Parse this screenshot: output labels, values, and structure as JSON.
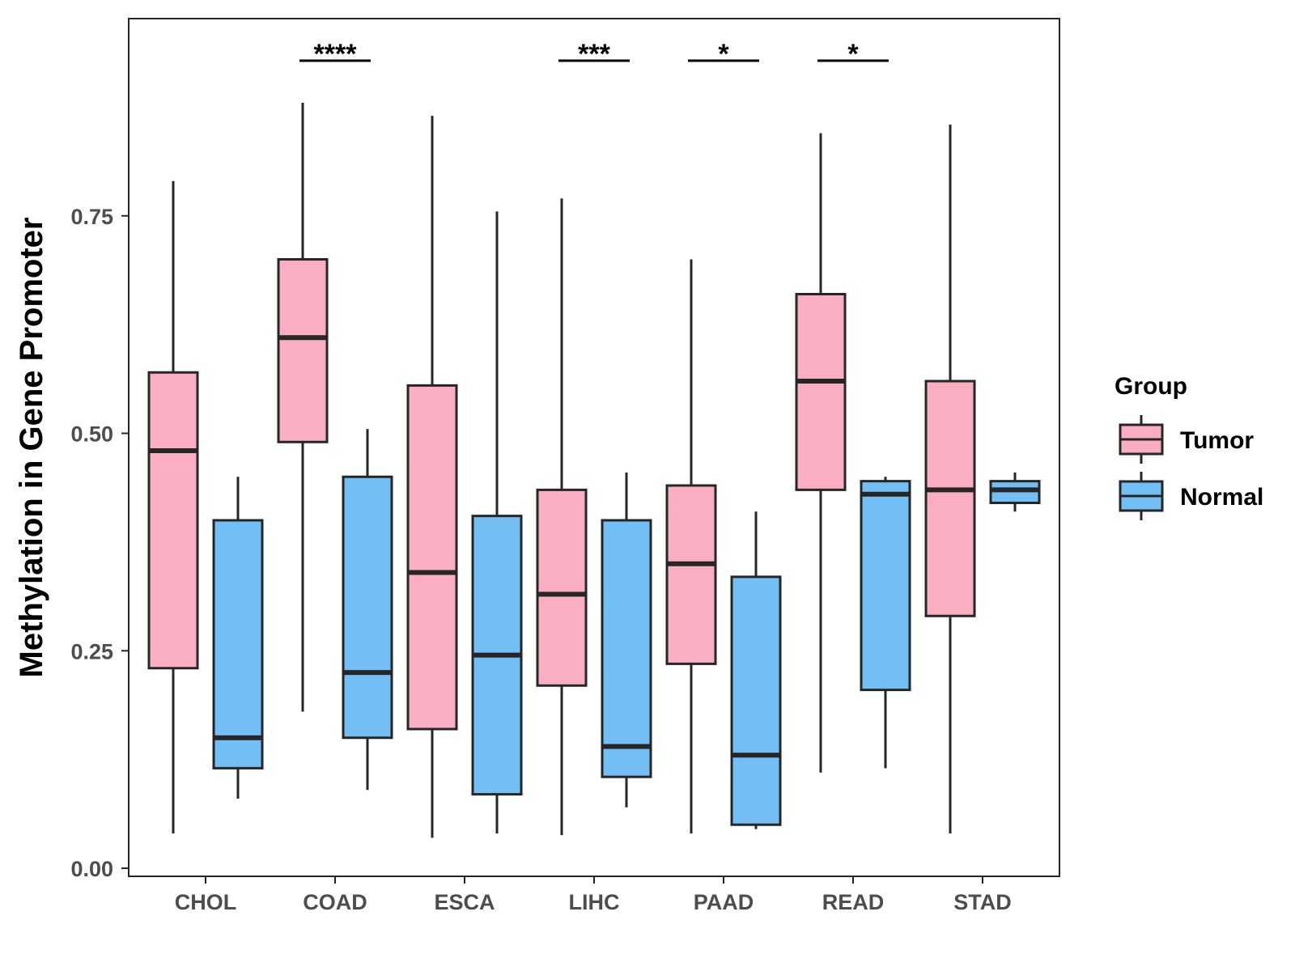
{
  "chart_data": {
    "type": "boxplot",
    "title": "",
    "xlabel": "",
    "ylabel": "Methylation in Gene Promoter",
    "ylim": [
      0,
      0.97
    ],
    "yticks": [
      "0.00",
      "0.25",
      "0.50",
      "0.75"
    ],
    "ytick_values": [
      0,
      0.25,
      0.5,
      0.75
    ],
    "grid": false,
    "legend_position": "right",
    "legend_title": "Group",
    "categories": [
      "CHOL",
      "COAD",
      "ESCA",
      "LIHC",
      "PAAD",
      "READ",
      "STAD"
    ],
    "series": [
      {
        "name": "Tumor",
        "color": "#FBAEC1",
        "boxes": [
          {
            "min": 0.04,
            "q1": 0.23,
            "median": 0.48,
            "q3": 0.57,
            "max": 0.79
          },
          {
            "min": 0.18,
            "q1": 0.49,
            "median": 0.61,
            "q3": 0.7,
            "max": 0.88
          },
          {
            "min": 0.035,
            "q1": 0.16,
            "median": 0.34,
            "q3": 0.555,
            "max": 0.865
          },
          {
            "min": 0.038,
            "q1": 0.21,
            "median": 0.315,
            "q3": 0.435,
            "max": 0.77
          },
          {
            "min": 0.04,
            "q1": 0.235,
            "median": 0.35,
            "q3": 0.44,
            "max": 0.7
          },
          {
            "min": 0.11,
            "q1": 0.435,
            "median": 0.56,
            "q3": 0.66,
            "max": 0.845
          },
          {
            "min": 0.04,
            "q1": 0.29,
            "median": 0.435,
            "q3": 0.56,
            "max": 0.855
          }
        ]
      },
      {
        "name": "Normal",
        "color": "#74BEF6",
        "boxes": [
          {
            "min": 0.08,
            "q1": 0.115,
            "median": 0.15,
            "q3": 0.4,
            "max": 0.45
          },
          {
            "min": 0.09,
            "q1": 0.15,
            "median": 0.225,
            "q3": 0.45,
            "max": 0.505
          },
          {
            "min": 0.04,
            "q1": 0.085,
            "median": 0.245,
            "q3": 0.405,
            "max": 0.755
          },
          {
            "min": 0.07,
            "q1": 0.105,
            "median": 0.14,
            "q3": 0.4,
            "max": 0.455
          },
          {
            "min": 0.045,
            "q1": 0.05,
            "median": 0.13,
            "q3": 0.335,
            "max": 0.41
          },
          {
            "min": 0.115,
            "q1": 0.205,
            "median": 0.43,
            "q3": 0.445,
            "max": 0.45
          },
          {
            "min": 0.41,
            "q1": 0.42,
            "median": 0.435,
            "q3": 0.445,
            "max": 0.455
          }
        ]
      }
    ],
    "significance": [
      {
        "category": "CHOL",
        "label": ""
      },
      {
        "category": "COAD",
        "label": "****"
      },
      {
        "category": "ESCA",
        "label": ""
      },
      {
        "category": "LIHC",
        "label": "***"
      },
      {
        "category": "PAAD",
        "label": "*"
      },
      {
        "category": "READ",
        "label": "*"
      },
      {
        "category": "STAD",
        "label": ""
      }
    ]
  },
  "colors": {
    "tumor": "#FBAEC1",
    "normal": "#74BEF6",
    "outline": "#262626",
    "tick_text": "#4d4d4d"
  }
}
